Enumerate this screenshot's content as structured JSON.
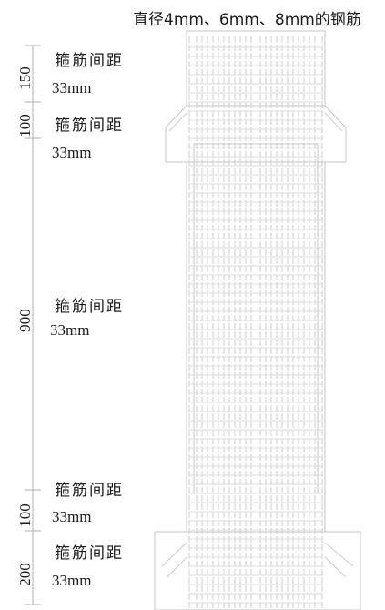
{
  "title": "直径4mm、6mm、8mm的钢筋",
  "segments": [
    {
      "length": "150",
      "label": "箍筋间距",
      "spacing": "33mm"
    },
    {
      "length": "100",
      "label": "箍筋间距",
      "spacing": "33mm"
    },
    {
      "length": "900",
      "label": "箍筋间距",
      "spacing": "33mm"
    },
    {
      "length": "100",
      "label": "箍筋间距",
      "spacing": "33mm"
    },
    {
      "length": "200",
      "label": "箍筋间距",
      "spacing": "33mm"
    }
  ]
}
